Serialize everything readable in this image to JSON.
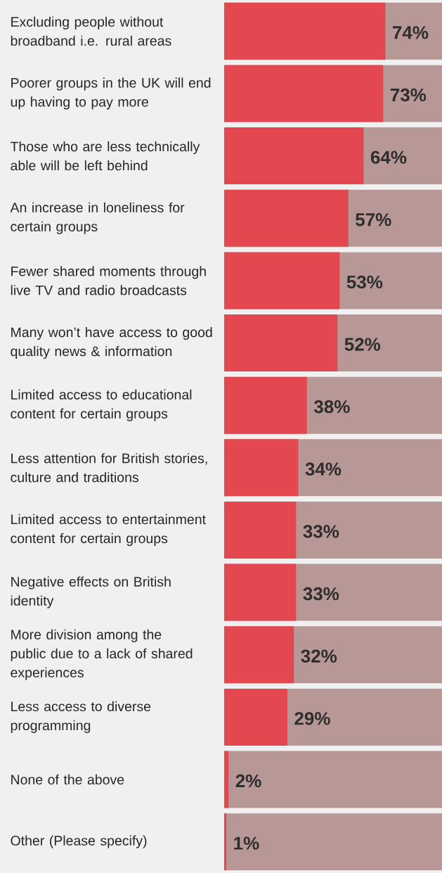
{
  "chart_data": {
    "type": "bar",
    "orientation": "horizontal",
    "xlim": [
      0,
      100
    ],
    "categories": [
      "Excluding people without broadband i.e. rural areas",
      "Poorer groups in the UK will end up having to pay more",
      "Those who are less technically able will be left behind",
      "An increase in loneliness for certain groups",
      "Fewer shared moments through live TV and radio broadcasts",
      "Many won’t have access to good quality news & information",
      "Limited access to educational content for certain groups",
      "Less attention for British stories, culture and traditions",
      "Limited access to entertainment content for certain groups",
      "Negative effects on British identity",
      "More division among the public due to a lack of shared experiences",
      "Less access to diverse programming",
      "None of the above",
      "Other (Please specify)"
    ],
    "series": [
      {
        "color": "#e3474f",
        "values": [
          74,
          73,
          64,
          57,
          53,
          52,
          38,
          34,
          33,
          33,
          32,
          29,
          2,
          1
        ],
        "value_labels": [
          "74%",
          "73%",
          "64%",
          "57%",
          "53%",
          "52%",
          "38%",
          "34%",
          "33%",
          "33%",
          "32%",
          "29%",
          "2%",
          "1%"
        ]
      }
    ]
  }
}
